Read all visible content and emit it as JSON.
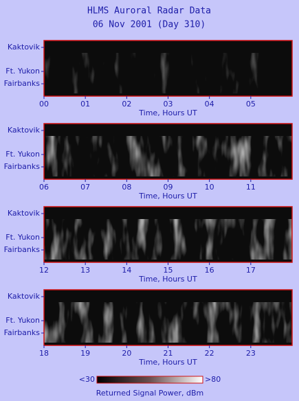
{
  "title": "HLMS Auroral Radar Data",
  "subtitle": "06 Nov 2001 (Day 310)",
  "stations": [
    "Kaktovik",
    "Ft. Yukon",
    "Fairbanks"
  ],
  "chart_data": [
    {
      "type": "heatmap",
      "xlabel": "Time, Hours UT",
      "xlim": [
        0,
        6
      ],
      "xticks": [
        {
          "value": 0,
          "label": "00"
        },
        {
          "value": 1,
          "label": "01"
        },
        {
          "value": 2,
          "label": "02"
        },
        {
          "value": 3,
          "label": "03"
        },
        {
          "value": 4,
          "label": "04"
        },
        {
          "value": 5,
          "label": "05"
        }
      ]
    },
    {
      "type": "heatmap",
      "xlabel": "Time, Hours UT",
      "xlim": [
        6,
        12
      ],
      "xticks": [
        {
          "value": 6,
          "label": "06"
        },
        {
          "value": 7,
          "label": "07"
        },
        {
          "value": 8,
          "label": "08"
        },
        {
          "value": 9,
          "label": "09"
        },
        10,
        11
      ]
    },
    {
      "type": "heatmap",
      "xlabel": "Time, Hours UT",
      "xlim": [
        12,
        18
      ],
      "xticks": [
        12,
        13,
        14,
        15,
        16,
        17
      ]
    },
    {
      "type": "heatmap",
      "xlabel": "Time, Hours UT",
      "xlim": [
        18,
        24
      ],
      "xticks": [
        18,
        19,
        20,
        21,
        22,
        23
      ]
    }
  ],
  "colorbar": {
    "label": "Returned Signal Power, dBm",
    "clim": [
      30,
      80
    ],
    "ticks": [
      {
        "value": 30,
        "label": "<30"
      },
      {
        "value": 80,
        "label": ">80"
      }
    ]
  }
}
